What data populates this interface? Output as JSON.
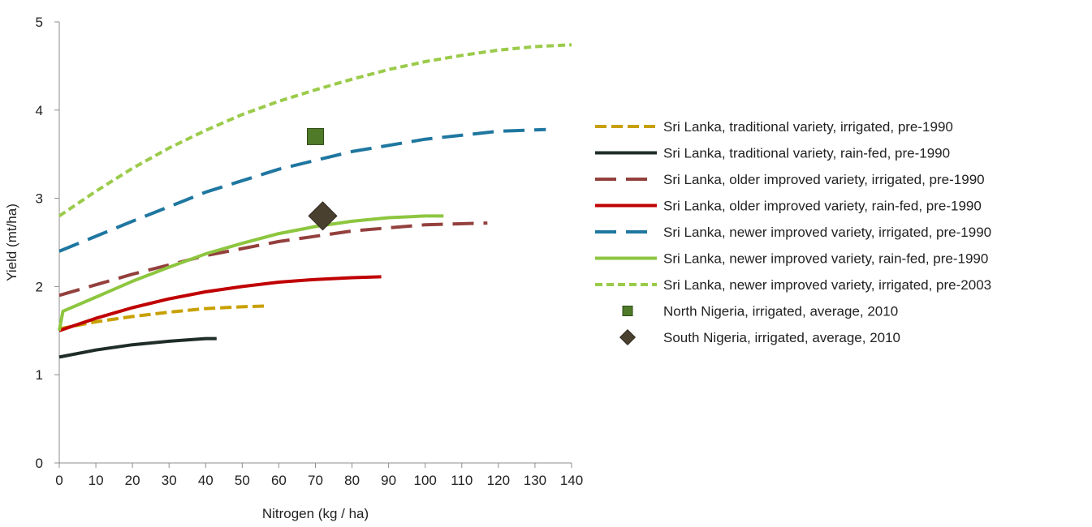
{
  "chart_data": {
    "type": "line",
    "title": "",
    "xlabel": "Nitrogen (kg / ha)",
    "ylabel": "Yield (mt/ha)",
    "xlim": [
      0,
      140
    ],
    "ylim": [
      0,
      5
    ],
    "x_ticks": [
      0,
      10,
      20,
      30,
      40,
      50,
      60,
      70,
      80,
      90,
      100,
      110,
      120,
      130,
      140
    ],
    "y_ticks": [
      0,
      1,
      2,
      3,
      4,
      5
    ],
    "grid": false,
    "legend_position": "right",
    "series": [
      {
        "name": "Sri Lanka, traditional variety, irrigated, pre-1990",
        "color": "#C8A000",
        "style": "dash",
        "points": [
          [
            0,
            1.52
          ],
          [
            10,
            1.6
          ],
          [
            20,
            1.66
          ],
          [
            30,
            1.71
          ],
          [
            40,
            1.75
          ],
          [
            50,
            1.77
          ],
          [
            57,
            1.78
          ]
        ]
      },
      {
        "name": "Sri Lanka, traditional variety, rain-fed, pre-1990",
        "color": "#1F2D27",
        "style": "solid",
        "points": [
          [
            0,
            1.2
          ],
          [
            10,
            1.28
          ],
          [
            20,
            1.34
          ],
          [
            30,
            1.38
          ],
          [
            40,
            1.41
          ],
          [
            43,
            1.41
          ]
        ]
      },
      {
        "name": "Sri Lanka, older improved variety, irrigated, pre-1990",
        "color": "#93403D",
        "style": "longdash",
        "points": [
          [
            0,
            1.9
          ],
          [
            20,
            2.14
          ],
          [
            40,
            2.35
          ],
          [
            60,
            2.51
          ],
          [
            80,
            2.63
          ],
          [
            100,
            2.7
          ],
          [
            117,
            2.72
          ]
        ]
      },
      {
        "name": "Sri Lanka, older improved variety, rain-fed, pre-1990",
        "color": "#C00000",
        "style": "solid",
        "points": [
          [
            0,
            1.5
          ],
          [
            10,
            1.64
          ],
          [
            20,
            1.76
          ],
          [
            30,
            1.86
          ],
          [
            40,
            1.94
          ],
          [
            50,
            2.0
          ],
          [
            60,
            2.05
          ],
          [
            70,
            2.08
          ],
          [
            80,
            2.1
          ],
          [
            88,
            2.11
          ]
        ]
      },
      {
        "name": "Sri Lanka, newer improved variety, irrigated, pre-1990",
        "color": "#1F77A0",
        "style": "longdash",
        "points": [
          [
            0,
            2.4
          ],
          [
            20,
            2.74
          ],
          [
            40,
            3.07
          ],
          [
            60,
            3.33
          ],
          [
            80,
            3.53
          ],
          [
            100,
            3.67
          ],
          [
            120,
            3.76
          ],
          [
            133,
            3.78
          ]
        ]
      },
      {
        "name": "Sri Lanka, newer improved variety, rain-fed, pre-1990",
        "color": "#8DC63F",
        "style": "solid",
        "points": [
          [
            0,
            1.5
          ],
          [
            1,
            1.72
          ],
          [
            10,
            1.88
          ],
          [
            20,
            2.06
          ],
          [
            30,
            2.22
          ],
          [
            40,
            2.37
          ],
          [
            50,
            2.49
          ],
          [
            60,
            2.6
          ],
          [
            70,
            2.68
          ],
          [
            80,
            2.74
          ],
          [
            90,
            2.78
          ],
          [
            100,
            2.8
          ],
          [
            105,
            2.8
          ]
        ]
      },
      {
        "name": "Sri Lanka, newer improved variety, irrigated, pre-2003",
        "color": "#9BCB4B",
        "style": "shortdash",
        "points": [
          [
            0,
            2.8
          ],
          [
            10,
            3.08
          ],
          [
            20,
            3.34
          ],
          [
            30,
            3.57
          ],
          [
            40,
            3.77
          ],
          [
            50,
            3.95
          ],
          [
            60,
            4.1
          ],
          [
            70,
            4.23
          ],
          [
            80,
            4.35
          ],
          [
            90,
            4.46
          ],
          [
            100,
            4.55
          ],
          [
            110,
            4.62
          ],
          [
            120,
            4.68
          ],
          [
            130,
            4.72
          ],
          [
            140,
            4.74
          ]
        ]
      },
      {
        "name": "North Nigeria, irrigated, average, 2010",
        "color": "#4F7A28",
        "style": "square",
        "points": [
          [
            70,
            3.7
          ]
        ]
      },
      {
        "name": "South Nigeria, irrigated, average, 2010",
        "color": "#4A4030",
        "style": "diamond",
        "points": [
          [
            72,
            2.8
          ]
        ]
      }
    ]
  }
}
